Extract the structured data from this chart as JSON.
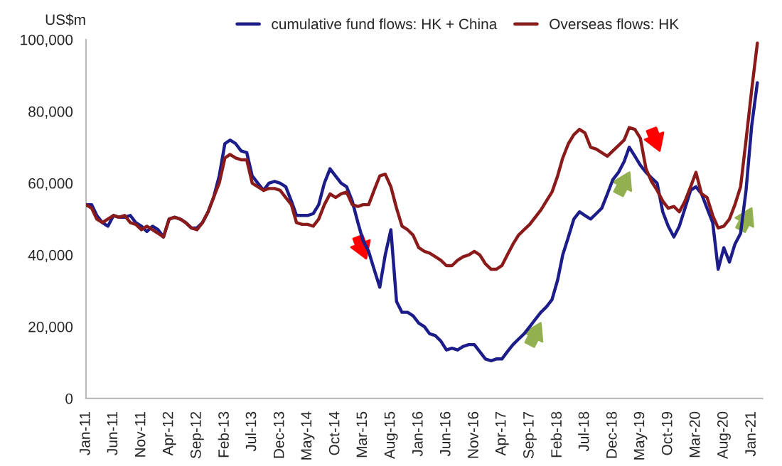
{
  "chart_data": {
    "type": "line",
    "ylabel": "US$m",
    "x": [
      "2011-01",
      "2011-02",
      "2011-03",
      "2011-04",
      "2011-05",
      "2011-06",
      "2011-07",
      "2011-08",
      "2011-09",
      "2011-10",
      "2011-11",
      "2011-12",
      "2012-01",
      "2012-02",
      "2012-03",
      "2012-04",
      "2012-05",
      "2012-06",
      "2012-07",
      "2012-08",
      "2012-09",
      "2012-10",
      "2012-11",
      "2012-12",
      "2013-01",
      "2013-02",
      "2013-03",
      "2013-04",
      "2013-05",
      "2013-06",
      "2013-07",
      "2013-08",
      "2013-09",
      "2013-10",
      "2013-11",
      "2013-12",
      "2014-01",
      "2014-02",
      "2014-03",
      "2014-04",
      "2014-05",
      "2014-06",
      "2014-07",
      "2014-08",
      "2014-09",
      "2014-10",
      "2014-11",
      "2014-12",
      "2015-01",
      "2015-02",
      "2015-03",
      "2015-04",
      "2015-05",
      "2015-06",
      "2015-07",
      "2015-08",
      "2015-09",
      "2015-10",
      "2015-11",
      "2015-12",
      "2016-01",
      "2016-02",
      "2016-03",
      "2016-04",
      "2016-05",
      "2016-06",
      "2016-07",
      "2016-08",
      "2016-09",
      "2016-10",
      "2016-11",
      "2016-12",
      "2017-01",
      "2017-02",
      "2017-03",
      "2017-04",
      "2017-05",
      "2017-06",
      "2017-07",
      "2017-08",
      "2017-09",
      "2017-10",
      "2017-11",
      "2017-12",
      "2018-01",
      "2018-02",
      "2018-03",
      "2018-04",
      "2018-05",
      "2018-06",
      "2018-07",
      "2018-08",
      "2018-09",
      "2018-10",
      "2018-11",
      "2018-12",
      "2019-01",
      "2019-02",
      "2019-03",
      "2019-04",
      "2019-05",
      "2019-06",
      "2019-07",
      "2019-08",
      "2019-09",
      "2019-10",
      "2019-11",
      "2019-12",
      "2020-01",
      "2020-02",
      "2020-03",
      "2020-04",
      "2020-05",
      "2020-06",
      "2020-07",
      "2020-08",
      "2020-09",
      "2020-10",
      "2020-11",
      "2020-12",
      "2021-01",
      "2021-02"
    ],
    "series": [
      {
        "name": "cumulative fund flows: HK + China",
        "color": "#1c1c8a",
        "values": [
          54000,
          54000,
          51000,
          49000,
          48000,
          51000,
          50500,
          50500,
          51000,
          49000,
          48000,
          46500,
          48000,
          47000,
          45000,
          50000,
          50500,
          50000,
          49000,
          47500,
          47500,
          49000,
          52000,
          56000,
          62000,
          71000,
          72000,
          71000,
          69000,
          68500,
          62000,
          60000,
          58000,
          60000,
          60500,
          60000,
          59000,
          55000,
          51000,
          51000,
          51000,
          51500,
          54000,
          60000,
          64000,
          62000,
          60000,
          59000,
          55000,
          49000,
          44000,
          41000,
          36000,
          31000,
          40000,
          47000,
          27000,
          24000,
          24000,
          23000,
          21000,
          20000,
          18000,
          17500,
          16000,
          13500,
          14000,
          13500,
          14500,
          15000,
          15000,
          13000,
          11000,
          10500,
          11000,
          11000,
          13000,
          15000,
          16500,
          18000,
          20000,
          22000,
          24000,
          25500,
          27500,
          33000,
          40000,
          45000,
          50000,
          52000,
          51000,
          50000,
          51500,
          53000,
          57000,
          61000,
          63000,
          66000,
          70000,
          67500,
          65000,
          63000,
          61500,
          60000,
          52000,
          48000,
          45000,
          48000,
          53000,
          58000,
          59000,
          57000,
          53000,
          49000,
          36000,
          42000,
          38000,
          43000,
          46000,
          58000,
          76000,
          88000
        ]
      },
      {
        "name": "Overseas flows: HK",
        "color": "#8b1a1a",
        "values": [
          54000,
          53000,
          50000,
          49000,
          50000,
          51000,
          50500,
          51000,
          49000,
          48500,
          47000,
          48000,
          47000,
          46000,
          45000,
          50000,
          50500,
          50000,
          49000,
          47500,
          47000,
          49000,
          52000,
          56000,
          60000,
          67000,
          68000,
          67000,
          66500,
          66500,
          60000,
          59000,
          58000,
          58500,
          58500,
          58000,
          56000,
          54000,
          49000,
          48500,
          48500,
          48000,
          50000,
          54000,
          57000,
          56000,
          57000,
          57500,
          54000,
          53500,
          54000,
          54000,
          58000,
          62000,
          62500,
          59000,
          53000,
          48000,
          47000,
          45500,
          42000,
          41000,
          40500,
          39500,
          38500,
          37000,
          37000,
          38500,
          39500,
          40000,
          41000,
          40000,
          37500,
          36000,
          36000,
          37000,
          40000,
          43000,
          45500,
          47000,
          48500,
          50500,
          52500,
          55000,
          57500,
          62000,
          67000,
          71000,
          73500,
          75000,
          74000,
          70000,
          69500,
          68500,
          67500,
          69000,
          70500,
          72000,
          75500,
          75000,
          72500,
          64000,
          60500,
          58000,
          55000,
          53000,
          53500,
          52000,
          55000,
          59000,
          63000,
          57000,
          56000,
          51000,
          47500,
          48000,
          50000,
          54000,
          59000,
          72000,
          86000,
          99000
        ]
      }
    ],
    "xlim": [
      "2011-01",
      "2021-03"
    ],
    "xticks": [
      {
        "value": "2011-01",
        "label": "Jan-11"
      },
      {
        "value": "2011-06",
        "label": "Jun-11"
      },
      {
        "value": "2011-11",
        "label": "Nov-11"
      },
      {
        "value": "2012-04",
        "label": "Apr-12"
      },
      {
        "value": "2012-09",
        "label": "Sep-12"
      },
      {
        "value": "2013-02",
        "label": "Feb-13"
      },
      {
        "value": "2013-07",
        "label": "Jul-13"
      },
      {
        "value": "2013-12",
        "label": "Dec-13"
      },
      {
        "value": "2014-05",
        "label": "May-14"
      },
      {
        "value": "2014-10",
        "label": "Oct-14"
      },
      {
        "value": "2015-03",
        "label": "Mar-15"
      },
      {
        "value": "2015-08",
        "label": "Aug-15"
      },
      {
        "value": "2016-01",
        "label": "Jan-16"
      },
      {
        "value": "2016-06",
        "label": "Jun-16"
      },
      {
        "value": "2016-11",
        "label": "Nov-16"
      },
      {
        "value": "2017-04",
        "label": "Apr-17"
      },
      {
        "value": "2017-09",
        "label": "Sep-17"
      },
      {
        "value": "2018-02",
        "label": "Feb-18"
      },
      {
        "value": "2018-07",
        "label": "Jul-18"
      },
      {
        "value": "2018-12",
        "label": "Dec-18"
      },
      {
        "value": "2019-05",
        "label": "May-19"
      },
      {
        "value": "2019-10",
        "label": "Oct-19"
      },
      {
        "value": "2020-03",
        "label": "Mar-20"
      },
      {
        "value": "2020-08",
        "label": "Aug-20"
      },
      {
        "value": "2021-01",
        "label": "Jan-21"
      }
    ],
    "ylim": [
      0,
      100000
    ],
    "yticks": [
      {
        "value": 0,
        "label": "0"
      },
      {
        "value": 20000,
        "label": "20,000"
      },
      {
        "value": 40000,
        "label": "40,000"
      },
      {
        "value": 60000,
        "label": "60,000"
      },
      {
        "value": 80000,
        "label": "80,000"
      },
      {
        "value": 100000,
        "label": "100,000"
      }
    ],
    "legend": "top",
    "grid": false,
    "marker": "none",
    "line_style": "solid"
  }
}
